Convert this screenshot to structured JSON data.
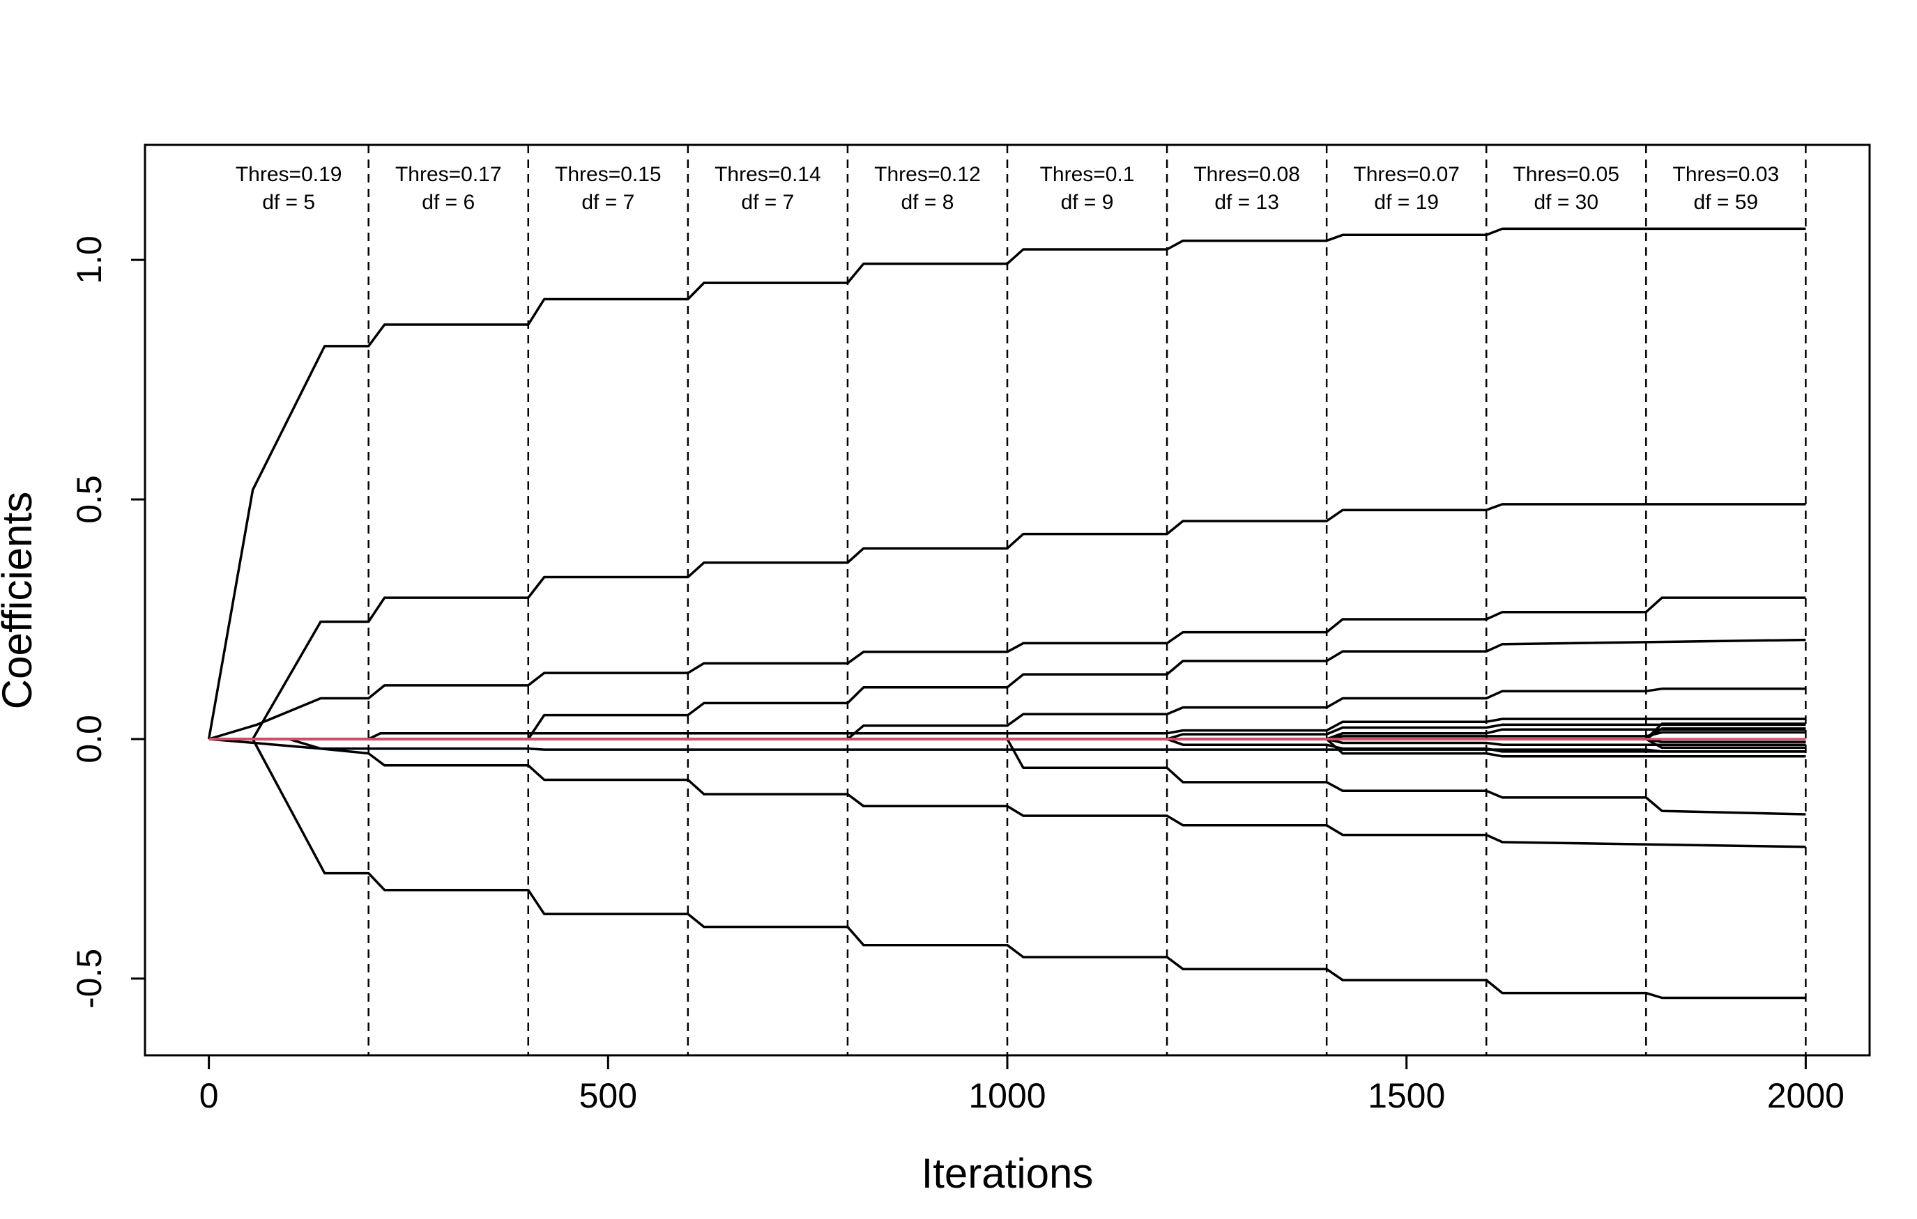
{
  "chart_data": {
    "type": "line",
    "title": "",
    "xlabel": "Iterations",
    "ylabel": "Coefficients",
    "xlim": [
      -80,
      2080
    ],
    "ylim": [
      -0.66,
      1.24
    ],
    "xticks": [
      0,
      500,
      1000,
      1500,
      2000
    ],
    "xtick_labels": [
      "0",
      "500",
      "1000",
      "1500",
      "2000"
    ],
    "yticks": [
      -0.5,
      0,
      0.5,
      1
    ],
    "ytick_labels": [
      "-0.5",
      "0.0",
      "0.5",
      "1.0"
    ],
    "grid": false,
    "legend": "none",
    "line_color": "#000000",
    "zero_line_color": "#DF536B",
    "thresholds": [
      {
        "x": 200,
        "label": "Thres=0.19",
        "df": "df = 5"
      },
      {
        "x": 400,
        "label": "Thres=0.17",
        "df": "df = 6"
      },
      {
        "x": 600,
        "label": "Thres=0.15",
        "df": "df = 7"
      },
      {
        "x": 800,
        "label": "Thres=0.14",
        "df": "df = 7"
      },
      {
        "x": 1000,
        "label": "Thres=0.12",
        "df": "df = 8"
      },
      {
        "x": 1200,
        "label": "Thres=0.1",
        "df": "df = 9"
      },
      {
        "x": 1400,
        "label": "Thres=0.08",
        "df": "df = 13"
      },
      {
        "x": 1600,
        "label": "Thres=0.07",
        "df": "df = 19"
      },
      {
        "x": 1800,
        "label": "Thres=0.05",
        "df": "df = 30"
      },
      {
        "x": 2000,
        "label": "Thres=0.03",
        "df": "df = 59"
      }
    ],
    "series": [
      {
        "values": [
          [
            0,
            0
          ],
          [
            55,
            0.52
          ],
          [
            145,
            0.82
          ],
          [
            200,
            0.82
          ],
          [
            220,
            0.865
          ],
          [
            400,
            0.865
          ],
          [
            420,
            0.918
          ],
          [
            600,
            0.918
          ],
          [
            620,
            0.952
          ],
          [
            800,
            0.952
          ],
          [
            820,
            0.992
          ],
          [
            1000,
            0.992
          ],
          [
            1020,
            1.022
          ],
          [
            1200,
            1.022
          ],
          [
            1220,
            1.04
          ],
          [
            1400,
            1.04
          ],
          [
            1420,
            1.052
          ],
          [
            1600,
            1.052
          ],
          [
            1620,
            1.065
          ],
          [
            2000,
            1.065
          ]
        ]
      },
      {
        "values": [
          [
            0,
            0
          ],
          [
            55,
            0.0
          ],
          [
            140,
            0.245
          ],
          [
            200,
            0.245
          ],
          [
            220,
            0.295
          ],
          [
            400,
            0.295
          ],
          [
            420,
            0.338
          ],
          [
            600,
            0.338
          ],
          [
            620,
            0.368
          ],
          [
            800,
            0.368
          ],
          [
            820,
            0.398
          ],
          [
            1000,
            0.398
          ],
          [
            1020,
            0.428
          ],
          [
            1200,
            0.428
          ],
          [
            1220,
            0.455
          ],
          [
            1400,
            0.455
          ],
          [
            1420,
            0.478
          ],
          [
            1600,
            0.478
          ],
          [
            1620,
            0.49
          ],
          [
            2000,
            0.49
          ]
        ]
      },
      {
        "values": [
          [
            0,
            0
          ],
          [
            60,
            0.03
          ],
          [
            140,
            0.085
          ],
          [
            200,
            0.085
          ],
          [
            220,
            0.112
          ],
          [
            400,
            0.112
          ],
          [
            420,
            0.138
          ],
          [
            600,
            0.138
          ],
          [
            620,
            0.158
          ],
          [
            800,
            0.158
          ],
          [
            820,
            0.182
          ],
          [
            1000,
            0.182
          ],
          [
            1020,
            0.2
          ],
          [
            1200,
            0.2
          ],
          [
            1220,
            0.223
          ],
          [
            1400,
            0.223
          ],
          [
            1420,
            0.25
          ],
          [
            1600,
            0.25
          ],
          [
            1620,
            0.265
          ],
          [
            1800,
            0.265
          ],
          [
            1820,
            0.295
          ],
          [
            2000,
            0.295
          ]
        ]
      },
      {
        "values": [
          [
            0,
            0
          ],
          [
            400,
            0.0
          ],
          [
            420,
            0.05
          ],
          [
            600,
            0.05
          ],
          [
            620,
            0.075
          ],
          [
            800,
            0.075
          ],
          [
            820,
            0.108
          ],
          [
            1000,
            0.108
          ],
          [
            1020,
            0.135
          ],
          [
            1200,
            0.135
          ],
          [
            1220,
            0.163
          ],
          [
            1400,
            0.163
          ],
          [
            1420,
            0.183
          ],
          [
            1600,
            0.183
          ],
          [
            1620,
            0.198
          ],
          [
            2000,
            0.207
          ]
        ]
      },
      {
        "values": [
          [
            0,
            0
          ],
          [
            800,
            0.0
          ],
          [
            820,
            0.028
          ],
          [
            1000,
            0.028
          ],
          [
            1020,
            0.052
          ],
          [
            1200,
            0.052
          ],
          [
            1220,
            0.066
          ],
          [
            1400,
            0.066
          ],
          [
            1420,
            0.085
          ],
          [
            1600,
            0.085
          ],
          [
            1620,
            0.1
          ],
          [
            1800,
            0.1
          ],
          [
            1820,
            0.105
          ],
          [
            2000,
            0.105
          ]
        ]
      },
      {
        "values": [
          [
            0,
            0
          ],
          [
            200,
            0.0
          ],
          [
            215,
            0.012
          ],
          [
            1200,
            0.012
          ],
          [
            1220,
            0.018
          ],
          [
            1400,
            0.018
          ],
          [
            1420,
            0.036
          ],
          [
            1600,
            0.036
          ],
          [
            1620,
            0.042
          ],
          [
            2000,
            0.042
          ]
        ]
      },
      {
        "values": [
          [
            0,
            0
          ],
          [
            1200,
            0.0
          ],
          [
            1220,
            0.01
          ],
          [
            1400,
            0.01
          ],
          [
            1420,
            0.024
          ],
          [
            1600,
            0.024
          ],
          [
            1620,
            0.03
          ],
          [
            2000,
            0.03
          ]
        ]
      },
      {
        "values": [
          [
            0,
            0
          ],
          [
            1400,
            0.0
          ],
          [
            1420,
            0.012
          ],
          [
            1600,
            0.012
          ],
          [
            1620,
            0.02
          ],
          [
            2000,
            0.02
          ]
        ]
      },
      {
        "values": [
          [
            0,
            0
          ],
          [
            1400,
            0.0
          ],
          [
            1420,
            0.006
          ],
          [
            1800,
            0.006
          ],
          [
            1820,
            0.014
          ],
          [
            2000,
            0.014
          ]
        ]
      },
      {
        "values": [
          [
            0,
            0
          ],
          [
            1400,
            0.0
          ],
          [
            1420,
            -0.008
          ],
          [
            1600,
            -0.008
          ],
          [
            1620,
            -0.012
          ],
          [
            2000,
            -0.012
          ]
        ]
      },
      {
        "values": [
          [
            0,
            0
          ],
          [
            1200,
            0.0
          ],
          [
            1220,
            -0.012
          ],
          [
            1400,
            -0.012
          ],
          [
            1420,
            -0.02
          ],
          [
            1600,
            -0.02
          ],
          [
            1620,
            -0.026
          ],
          [
            2000,
            -0.026
          ]
        ]
      },
      {
        "values": [
          [
            0,
            0
          ],
          [
            1400,
            0.0
          ],
          [
            1420,
            -0.03
          ],
          [
            1600,
            -0.03
          ],
          [
            1620,
            -0.036
          ],
          [
            2000,
            -0.036
          ]
        ]
      },
      {
        "values": [
          [
            0,
            0
          ],
          [
            1800,
            0.0
          ],
          [
            1820,
            0.022
          ],
          [
            2000,
            0.022
          ]
        ]
      },
      {
        "values": [
          [
            0,
            0
          ],
          [
            1800,
            0.0
          ],
          [
            1820,
            -0.018
          ],
          [
            2000,
            -0.018
          ]
        ]
      },
      {
        "values": [
          [
            0,
            0
          ],
          [
            1800,
            0.0
          ],
          [
            1820,
            0.032
          ],
          [
            2000,
            0.032
          ]
        ]
      },
      {
        "values": [
          [
            0,
            0
          ],
          [
            1800,
            0.0
          ],
          [
            1820,
            -0.006
          ],
          [
            2000,
            -0.006
          ]
        ]
      },
      {
        "values": [
          [
            0,
            0
          ],
          [
            100,
            0.0
          ],
          [
            140,
            -0.02
          ],
          [
            400,
            -0.02
          ],
          [
            420,
            -0.022
          ],
          [
            1800,
            -0.022
          ],
          [
            1820,
            -0.026
          ],
          [
            2000,
            -0.026
          ]
        ]
      },
      {
        "values": [
          [
            0,
            0
          ],
          [
            140,
            -0.02
          ],
          [
            200,
            -0.03
          ],
          [
            220,
            -0.055
          ],
          [
            400,
            -0.055
          ],
          [
            420,
            -0.085
          ],
          [
            600,
            -0.085
          ],
          [
            620,
            -0.115
          ],
          [
            800,
            -0.115
          ],
          [
            820,
            -0.14
          ],
          [
            1000,
            -0.14
          ],
          [
            1020,
            -0.16
          ],
          [
            1200,
            -0.16
          ],
          [
            1220,
            -0.18
          ],
          [
            1400,
            -0.18
          ],
          [
            1420,
            -0.2
          ],
          [
            1600,
            -0.2
          ],
          [
            1620,
            -0.215
          ],
          [
            2000,
            -0.225
          ]
        ]
      },
      {
        "values": [
          [
            0,
            0
          ],
          [
            1000,
            0.0
          ],
          [
            1020,
            -0.06
          ],
          [
            1200,
            -0.06
          ],
          [
            1220,
            -0.09
          ],
          [
            1400,
            -0.09
          ],
          [
            1420,
            -0.108
          ],
          [
            1600,
            -0.108
          ],
          [
            1620,
            -0.122
          ],
          [
            1800,
            -0.122
          ],
          [
            1820,
            -0.15
          ],
          [
            2000,
            -0.157
          ]
        ]
      },
      {
        "values": [
          [
            0,
            0
          ],
          [
            55,
            0.0
          ],
          [
            145,
            -0.28
          ],
          [
            200,
            -0.28
          ],
          [
            220,
            -0.315
          ],
          [
            400,
            -0.315
          ],
          [
            420,
            -0.365
          ],
          [
            600,
            -0.365
          ],
          [
            620,
            -0.392
          ],
          [
            800,
            -0.392
          ],
          [
            820,
            -0.43
          ],
          [
            1000,
            -0.43
          ],
          [
            1020,
            -0.455
          ],
          [
            1200,
            -0.455
          ],
          [
            1220,
            -0.48
          ],
          [
            1400,
            -0.48
          ],
          [
            1420,
            -0.503
          ],
          [
            1600,
            -0.503
          ],
          [
            1620,
            -0.53
          ],
          [
            1800,
            -0.53
          ],
          [
            1820,
            -0.54
          ],
          [
            2000,
            -0.54
          ]
        ]
      }
    ]
  }
}
